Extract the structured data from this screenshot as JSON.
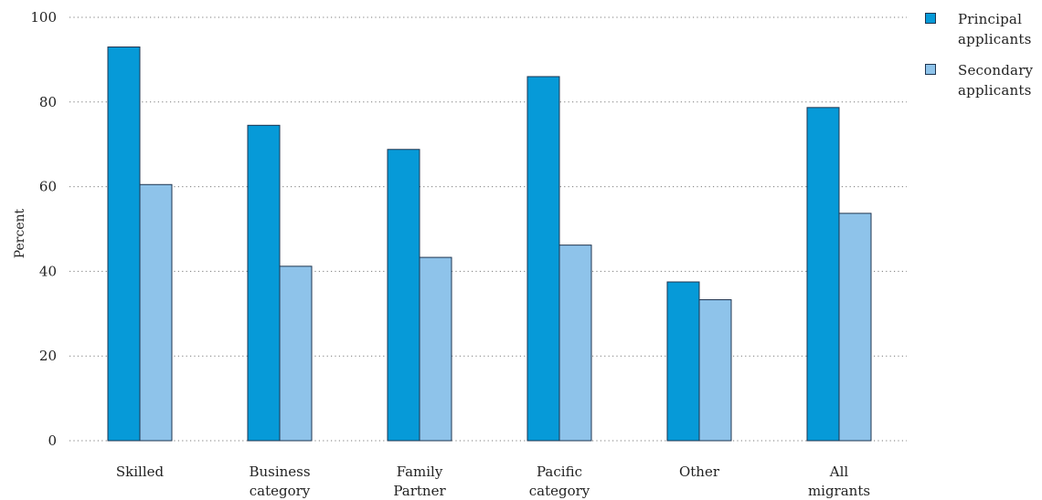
{
  "chart_data": {
    "type": "bar",
    "categories": [
      [
        "Skilled"
      ],
      [
        "Business",
        "category"
      ],
      [
        "Family",
        "Partner"
      ],
      [
        "Pacific",
        "category"
      ],
      [
        "Other"
      ],
      [
        "All",
        "migrants"
      ]
    ],
    "series": [
      {
        "name": "Principal applicants",
        "color": "#069ad8",
        "values": [
          93,
          74.5,
          68.8,
          86,
          37.5,
          78.7
        ]
      },
      {
        "name": "Secondary applicants",
        "color": "#8ec3ea",
        "values": [
          60.5,
          41.2,
          43.3,
          46.2,
          33.3,
          53.7
        ]
      }
    ],
    "ylabel": "Percent",
    "ylim": [
      0,
      100
    ],
    "yticks": [
      "0",
      "20",
      "40",
      "60",
      "80",
      "100"
    ],
    "grid": true,
    "legend_placement": "top-right"
  },
  "legend": {
    "items": [
      {
        "line1": "Principal",
        "line2": "applicants",
        "color": "#069ad8"
      },
      {
        "line1": "Secondary",
        "line2": "applicants",
        "color": "#8ec3ea"
      }
    ]
  }
}
